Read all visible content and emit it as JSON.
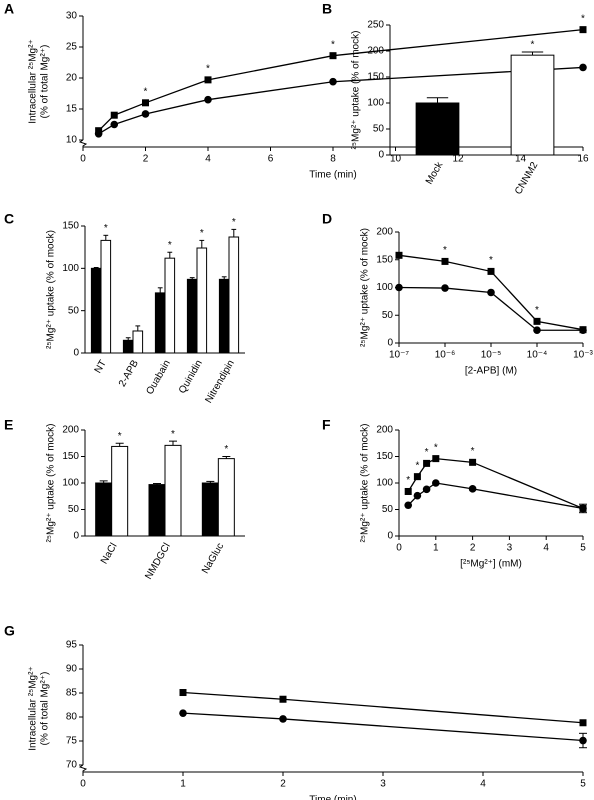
{
  "chart_data": [
    {
      "panel": "A",
      "type": "line",
      "ylabel": [
        "Intracellular ²⁵Mg²⁺",
        "(% of total Mg²⁺)"
      ],
      "xlabel": "Time (min)",
      "x": [
        0.5,
        1,
        2,
        4,
        8,
        16
      ],
      "xlim": [
        0,
        16
      ],
      "xticks": [
        0,
        2,
        4,
        6,
        8,
        10,
        12,
        14,
        16
      ],
      "ylim": [
        10,
        30
      ],
      "yticks": [
        10,
        15,
        20,
        25,
        30
      ],
      "axis_break": true,
      "series": [
        {
          "marker": "square",
          "color": "#000000",
          "values": [
            11.5,
            14,
            16,
            19.7,
            23.6,
            27.8
          ],
          "labels": [
            null,
            null,
            "*",
            "*",
            "*",
            "*"
          ]
        },
        {
          "marker": "circle",
          "color": "#000000",
          "values": [
            11,
            12.5,
            14.2,
            16.5,
            19.4,
            21.7
          ]
        }
      ]
    },
    {
      "panel": "B",
      "type": "bar",
      "ylabel": "²⁵Mg²⁺ uptake (% of mock)",
      "categories": [
        "Mock",
        "CNNM2"
      ],
      "values": [
        100,
        192
      ],
      "errors": [
        10,
        6
      ],
      "colors": [
        "#000000",
        "#ffffff"
      ],
      "labels": [
        null,
        "*"
      ],
      "ylim": [
        0,
        250
      ],
      "yticks": [
        0,
        50,
        100,
        150,
        200,
        250
      ]
    },
    {
      "panel": "C",
      "type": "bar",
      "ylabel": "²⁵Mg²⁺ uptake (% of mock)",
      "categories": [
        "NT",
        "2-APB",
        "Ouabain",
        "Quinidin",
        "Nitrendipin"
      ],
      "ylim": [
        0,
        150
      ],
      "yticks": [
        0,
        50,
        100,
        150
      ],
      "series": [
        {
          "color": "#000000",
          "values": [
            100,
            15,
            71,
            87,
            87
          ],
          "errors": [
            1,
            3,
            6,
            2,
            3
          ]
        },
        {
          "color": "#ffffff",
          "values": [
            133,
            26,
            112,
            124,
            137
          ],
          "errors": [
            6,
            6,
            7,
            9,
            9
          ],
          "labels": [
            "*",
            null,
            "*",
            "*",
            "*"
          ]
        }
      ]
    },
    {
      "panel": "D",
      "type": "line",
      "ylabel": "²⁵Mg²⁺ uptake (% of mock)",
      "xlabel": "[2-APB] (M)",
      "log_x": true,
      "x": [
        1e-07,
        1e-06,
        1e-05,
        0.0001,
        0.001
      ],
      "xlim": [
        1e-07,
        0.001
      ],
      "xticks": [
        {
          "value": 1e-07,
          "label": "10⁻⁷"
        },
        {
          "value": 1e-06,
          "label": "10⁻⁶"
        },
        {
          "value": 1e-05,
          "label": "10⁻⁵"
        },
        {
          "value": 0.0001,
          "label": "10⁻⁴"
        },
        {
          "value": 0.001,
          "label": "10⁻³"
        }
      ],
      "ylim": [
        0,
        200
      ],
      "yticks": [
        0,
        50,
        100,
        150,
        200
      ],
      "series": [
        {
          "marker": "square",
          "color": "#000000",
          "values": [
            158,
            147,
            129,
            39,
            24
          ],
          "labels": [
            null,
            "*",
            "*",
            "*",
            null
          ]
        },
        {
          "marker": "circle",
          "color": "#000000",
          "values": [
            100,
            99,
            91,
            23,
            23
          ]
        }
      ]
    },
    {
      "panel": "E",
      "type": "bar",
      "ylabel": "²⁵Mg²⁺ uptake (% of mock)",
      "categories": [
        "NaCl",
        "NMDGCl",
        "NaGluc"
      ],
      "ylim": [
        0,
        200
      ],
      "yticks": [
        0,
        50,
        100,
        150,
        200
      ],
      "series": [
        {
          "color": "#000000",
          "values": [
            100,
            97,
            100
          ],
          "errors": [
            4,
            2,
            3
          ]
        },
        {
          "color": "#ffffff",
          "values": [
            169,
            171,
            146
          ],
          "errors": [
            6,
            8,
            4
          ],
          "labels": [
            "*",
            "*",
            "*"
          ]
        }
      ]
    },
    {
      "panel": "F",
      "type": "line",
      "ylabel": "²⁵Mg²⁺ uptake (% of mock)",
      "xlabel": "[²⁵Mg²⁺] (mM)",
      "x": [
        0.25,
        0.5,
        0.75,
        1,
        2,
        5
      ],
      "xlim": [
        0,
        5
      ],
      "xticks": [
        0,
        1,
        2,
        3,
        4,
        5
      ],
      "ylim": [
        0,
        200
      ],
      "yticks": [
        0,
        50,
        100,
        150,
        200
      ],
      "series": [
        {
          "marker": "square",
          "color": "#000000",
          "values": [
            84,
            112,
            137,
            146,
            139,
            52
          ],
          "labels": [
            "*",
            "*",
            "*",
            "*",
            "*",
            null
          ]
        },
        {
          "marker": "circle",
          "color": "#000000",
          "values": [
            58,
            76,
            88,
            100,
            89,
            52
          ],
          "errors": [
            null,
            null,
            null,
            null,
            null,
            8
          ]
        }
      ]
    },
    {
      "panel": "G",
      "type": "line",
      "ylabel": [
        "Intracellular ²⁵Mg²⁺",
        "(% of total Mg²⁺)"
      ],
      "xlabel": "Time (min)",
      "x": [
        1,
        2,
        5
      ],
      "xlim": [
        0,
        5
      ],
      "xticks": [
        0,
        1,
        2,
        3,
        4,
        5
      ],
      "ylim": [
        70,
        95
      ],
      "yticks": [
        70,
        75,
        80,
        85,
        90,
        95
      ],
      "axis_break": true,
      "series": [
        {
          "marker": "square",
          "color": "#000000",
          "values": [
            85.1,
            83.7,
            78.8
          ]
        },
        {
          "marker": "circle",
          "color": "#000000",
          "values": [
            80.8,
            79.6,
            75.1
          ],
          "errors": [
            null,
            null,
            1.5
          ]
        }
      ]
    }
  ]
}
